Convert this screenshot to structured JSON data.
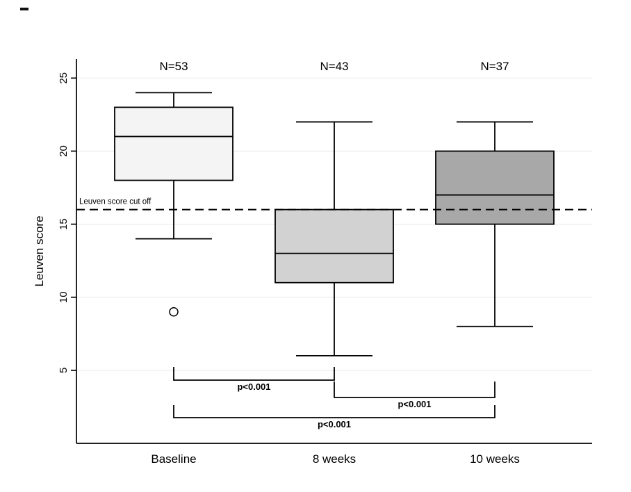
{
  "figure": {
    "background": "#ffffff"
  },
  "chart_data": {
    "type": "boxplot",
    "title": "",
    "ylabel": "Leuven score",
    "xlabel": "",
    "ylim": [
      0,
      26.3
    ],
    "yticks": [
      5,
      10,
      15,
      20,
      25
    ],
    "grid": true,
    "legend": "none",
    "groups": [
      {
        "label": "Baseline",
        "n_label": "N=53",
        "whisker_low": 14,
        "q1": 18,
        "median": 21,
        "q3": 23,
        "whisker_high": 24,
        "outliers": [
          9
        ],
        "fill": "#f4f4f4"
      },
      {
        "label": "8 weeks",
        "n_label": "N=43",
        "whisker_low": 6,
        "q1": 11,
        "median": 13,
        "q3": 16,
        "whisker_high": 22,
        "outliers": [],
        "fill": "#d2d2d2"
      },
      {
        "label": "10 weeks",
        "n_label": "N=37",
        "whisker_low": 8,
        "q1": 15,
        "median": 17,
        "q3": 20,
        "whisker_high": 22,
        "outliers": [],
        "fill": "#a8a8a8"
      }
    ],
    "cutoff_line": {
      "value": 16,
      "label": "Leuven score cut off",
      "style": "dashed"
    },
    "comparisons": [
      {
        "from": 0,
        "to": 1,
        "label": "p<0.001"
      },
      {
        "from": 1,
        "to": 2,
        "label": "p<0.001"
      },
      {
        "from": 0,
        "to": 2,
        "label": "p<0.001"
      }
    ],
    "colors": {
      "axis": "#000000",
      "box_stroke": "#000000",
      "gridline": "#ececec",
      "text": "#000000",
      "outlier_fill": "#ffffff"
    }
  }
}
